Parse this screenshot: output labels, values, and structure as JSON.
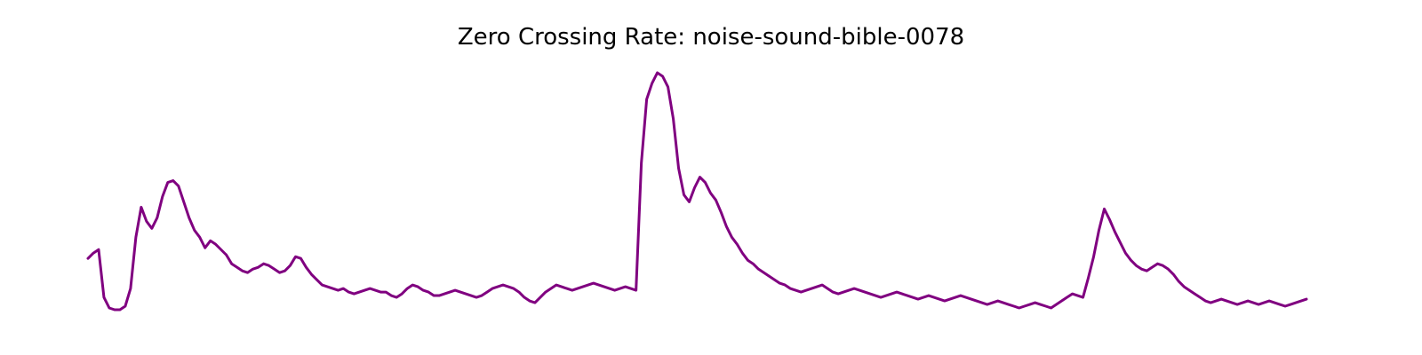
{
  "chart_data": {
    "type": "line",
    "title": "Zero Crossing Rate: noise-sound-bible-0078",
    "xlabel": "",
    "ylabel": "",
    "axes_visible": false,
    "grid": false,
    "series": [
      {
        "color": "#800080",
        "values": [
          0.046,
          0.049,
          0.051,
          0.024,
          0.018,
          0.017,
          0.017,
          0.019,
          0.029,
          0.058,
          0.075,
          0.067,
          0.063,
          0.069,
          0.081,
          0.089,
          0.09,
          0.087,
          0.078,
          0.069,
          0.062,
          0.058,
          0.052,
          0.056,
          0.054,
          0.051,
          0.048,
          0.043,
          0.041,
          0.039,
          0.038,
          0.04,
          0.041,
          0.043,
          0.042,
          0.04,
          0.038,
          0.039,
          0.042,
          0.047,
          0.046,
          0.041,
          0.037,
          0.034,
          0.031,
          0.03,
          0.029,
          0.028,
          0.029,
          0.027,
          0.026,
          0.027,
          0.028,
          0.029,
          0.028,
          0.027,
          0.027,
          0.025,
          0.024,
          0.026,
          0.029,
          0.031,
          0.03,
          0.028,
          0.027,
          0.025,
          0.025,
          0.026,
          0.027,
          0.028,
          0.027,
          0.026,
          0.025,
          0.024,
          0.025,
          0.027,
          0.029,
          0.03,
          0.031,
          0.03,
          0.029,
          0.027,
          0.024,
          0.022,
          0.021,
          0.024,
          0.027,
          0.029,
          0.031,
          0.03,
          0.029,
          0.028,
          0.029,
          0.03,
          0.031,
          0.032,
          0.031,
          0.03,
          0.029,
          0.028,
          0.029,
          0.03,
          0.029,
          0.028,
          0.1,
          0.136,
          0.145,
          0.151,
          0.149,
          0.143,
          0.125,
          0.097,
          0.082,
          0.078,
          0.086,
          0.092,
          0.089,
          0.083,
          0.079,
          0.072,
          0.064,
          0.058,
          0.054,
          0.049,
          0.045,
          0.043,
          0.04,
          0.038,
          0.036,
          0.034,
          0.032,
          0.031,
          0.029,
          0.028,
          0.027,
          0.028,
          0.029,
          0.03,
          0.031,
          0.029,
          0.027,
          0.026,
          0.027,
          0.028,
          0.029,
          0.028,
          0.027,
          0.026,
          0.025,
          0.024,
          0.025,
          0.026,
          0.027,
          0.026,
          0.025,
          0.024,
          0.023,
          0.024,
          0.025,
          0.024,
          0.023,
          0.022,
          0.023,
          0.024,
          0.025,
          0.024,
          0.023,
          0.022,
          0.021,
          0.02,
          0.021,
          0.022,
          0.021,
          0.02,
          0.019,
          0.018,
          0.019,
          0.02,
          0.021,
          0.02,
          0.019,
          0.018,
          0.02,
          0.022,
          0.024,
          0.026,
          0.025,
          0.024,
          0.035,
          0.047,
          0.062,
          0.074,
          0.068,
          0.061,
          0.055,
          0.049,
          0.045,
          0.042,
          0.04,
          0.039,
          0.041,
          0.043,
          0.042,
          0.04,
          0.037,
          0.033,
          0.03,
          0.028,
          0.026,
          0.024,
          0.022,
          0.021,
          0.022,
          0.023,
          0.022,
          0.021,
          0.02,
          0.021,
          0.022,
          0.021,
          0.02,
          0.021,
          0.022,
          0.021,
          0.02,
          0.019,
          0.02,
          0.021,
          0.022,
          0.023
        ]
      }
    ]
  }
}
